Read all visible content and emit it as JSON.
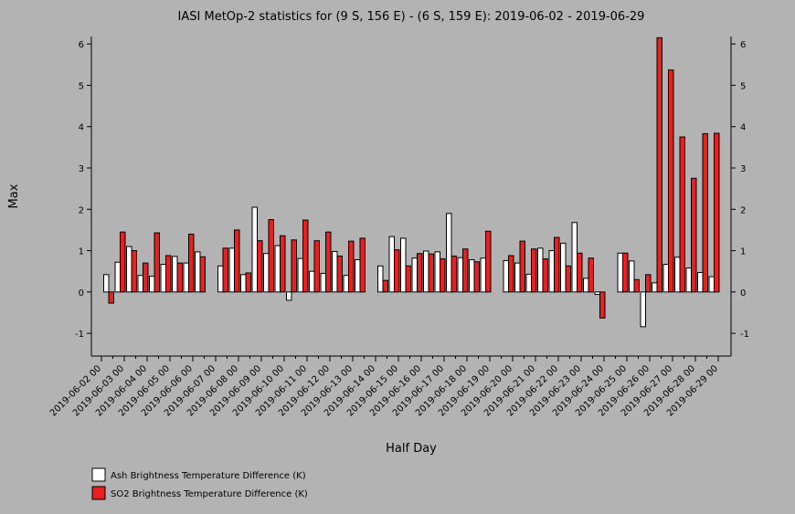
{
  "chart_data": {
    "type": "bar",
    "title": "IASI MetOp-2 statistics for (9 S, 156 E) - (6 S, 159 E): 2019-06-02 - 2019-06-29",
    "xlabel": "Half Day",
    "ylabel": "Max",
    "categories": [
      "2019-06-02 00",
      null,
      "2019-06-03 00",
      null,
      "2019-06-04 00",
      null,
      "2019-06-05 00",
      null,
      "2019-06-06 00",
      null,
      "2019-06-07 00",
      null,
      "2019-06-08 00",
      null,
      "2019-06-09 00",
      null,
      "2019-06-10 00",
      null,
      "2019-06-11 00",
      null,
      "2019-06-12 00",
      null,
      "2019-06-13 00",
      null,
      "2019-06-14 00",
      null,
      "2019-06-15 00",
      null,
      "2019-06-16 00",
      null,
      "2019-06-17 00",
      null,
      "2019-06-18 00",
      null,
      "2019-06-19 00",
      null,
      "2019-06-20 00",
      null,
      "2019-06-21 00",
      null,
      "2019-06-22 00",
      null,
      "2019-06-23 00",
      null,
      "2019-06-24 00",
      null,
      "2019-06-25 00",
      null,
      "2019-06-26 00",
      null,
      "2019-06-27 00",
      null,
      "2019-06-28 00",
      null,
      "2019-06-29 00"
    ],
    "series": [
      {
        "name": "Ash Brightness Temperature Difference (K)",
        "color": "#ffffff",
        "values": [
          0.42,
          0.72,
          1.1,
          0.4,
          0.38,
          0.67,
          0.86,
          0.7,
          0.97,
          null,
          0.63,
          1.06,
          0.42,
          2.05,
          0.93,
          1.12,
          -0.2,
          0.81,
          0.5,
          0.45,
          0.98,
          0.4,
          0.78,
          null,
          0.63,
          1.34,
          1.3,
          0.82,
          0.99,
          0.97,
          1.9,
          0.83,
          0.78,
          0.82,
          null,
          0.76,
          0.7,
          0.43,
          1.06,
          1.0,
          1.18,
          1.68,
          0.33,
          -0.06,
          null,
          0.94,
          0.75,
          -0.84,
          0.22,
          0.67,
          0.84,
          0.58,
          0.47,
          0.37,
          null
        ]
      },
      {
        "name": "SO2 Brightness Temperature Difference (K)",
        "color": "#e8201e",
        "values": [
          -0.27,
          1.45,
          1.0,
          0.7,
          1.43,
          0.88,
          0.7,
          1.4,
          0.85,
          null,
          1.06,
          1.5,
          0.46,
          1.24,
          1.75,
          1.36,
          1.26,
          1.74,
          1.24,
          1.45,
          0.87,
          1.23,
          1.3,
          null,
          0.28,
          1.02,
          0.63,
          0.93,
          0.92,
          0.8,
          0.87,
          1.04,
          0.73,
          1.47,
          null,
          0.88,
          1.23,
          1.04,
          0.8,
          1.32,
          0.63,
          0.94,
          0.82,
          -0.63,
          null,
          0.94,
          0.3,
          0.42,
          6.15,
          5.37,
          3.75,
          2.75,
          3.83,
          3.84,
          null
        ]
      }
    ],
    "ylim": [
      -1.55,
      6.18
    ],
    "yticks": [
      -1,
      0,
      1,
      2,
      3,
      4,
      5,
      6
    ]
  }
}
